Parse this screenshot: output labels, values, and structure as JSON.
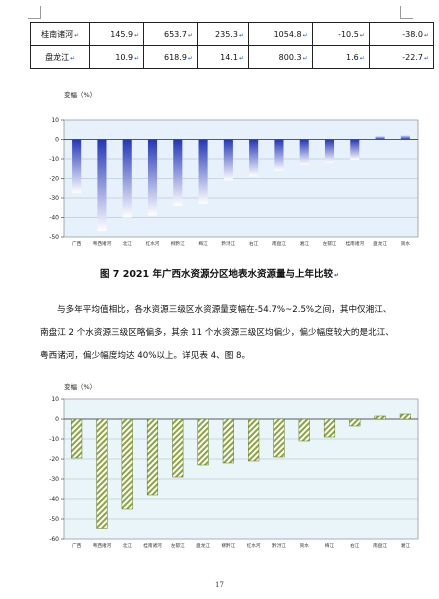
{
  "table": {
    "rows": [
      {
        "name": "桂南诸河",
        "values": [
          "145.9",
          "653.7",
          "235.3",
          "1054.8",
          "-10.5",
          "-38.0"
        ]
      },
      {
        "name": "盘龙江",
        "values": [
          "10.9",
          "618.9",
          "14.1",
          "800.3",
          "1.6",
          "-22.7"
        ]
      }
    ]
  },
  "figure7": {
    "caption": "图 7    2021 年广西水资源分区地表水资源量与上年比较"
  },
  "paragraph": {
    "lines": [
      "与多年平均值相比，各水资源三级区水资源量变幅在-54.7%~2.5%之间，其中仅湘江、",
      "南盘江 2 个水资源三级区略偏多，其余 11 个水资源三级区均偏少，偏少幅度较大的是北江、",
      "粤西诸河，偏少幅度均达 40%以上。详见表 4、图 8。"
    ]
  },
  "page_number": "17",
  "chart_data": [
    {
      "type": "bar",
      "ylabel": "变幅（%）",
      "ylim": [
        -50,
        10
      ],
      "yticks": [
        10,
        0,
        -10,
        -20,
        -30,
        -40,
        -50
      ],
      "grid": true,
      "categories": [
        "广西",
        "粤西诸河",
        "北江",
        "红水河",
        "柳黔江",
        "梅江",
        "黔浔江",
        "右江",
        "南盘江",
        "湘江",
        "左郁江",
        "桂南诸河",
        "盘龙江",
        "资水"
      ],
      "values": [
        -27.5,
        -47,
        -40,
        -39,
        -34,
        -33,
        -21,
        -19,
        -16,
        -13,
        -12,
        -10.5,
        1.6,
        2.0
      ],
      "colors": {
        "bar": "#2236b8",
        "fade": "#ffffff",
        "plot_bg": "#e6f1fb"
      }
    },
    {
      "type": "bar",
      "ylabel": "变幅（%）",
      "ylim": [
        -60,
        10
      ],
      "yticks": [
        10,
        0,
        -10,
        -20,
        -30,
        -40,
        -50,
        -60
      ],
      "grid": true,
      "categories": [
        "广西",
        "粤西诸河",
        "北江",
        "桂南诸河",
        "左郁江",
        "盘龙江",
        "柳黔江",
        "红水河",
        "黔浔江",
        "资水",
        "梅江",
        "右江",
        "南盘江",
        "湘江"
      ],
      "values": [
        -19.5,
        -54.7,
        -45,
        -38,
        -29,
        -23,
        -22,
        -21,
        -19,
        -11,
        -9,
        -3.5,
        1.5,
        2.5
      ],
      "colors": {
        "stripe": "#8aa53b",
        "plot_bg": "#eaf5f9"
      }
    }
  ]
}
